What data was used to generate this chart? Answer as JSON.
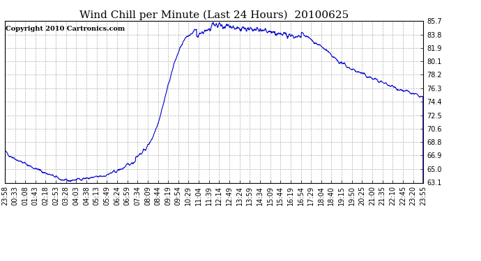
{
  "title": "Wind Chill per Minute (Last 24 Hours)  20100625",
  "copyright": "Copyright 2010 Cartronics.com",
  "line_color": "#0000CC",
  "background_color": "#ffffff",
  "grid_color": "#b0b0b0",
  "grid_style": "--",
  "ylim": [
    63.1,
    85.7
  ],
  "yticks": [
    63.1,
    65.0,
    66.9,
    68.8,
    70.6,
    72.5,
    74.4,
    76.3,
    78.2,
    80.1,
    81.9,
    83.8,
    85.7
  ],
  "xtick_labels": [
    "23:58",
    "00:33",
    "01:08",
    "01:43",
    "02:18",
    "02:53",
    "03:28",
    "04:03",
    "04:38",
    "05:13",
    "05:49",
    "06:24",
    "06:59",
    "07:34",
    "08:09",
    "08:44",
    "09:19",
    "09:54",
    "10:29",
    "11:04",
    "11:39",
    "12:14",
    "12:49",
    "13:24",
    "13:59",
    "14:34",
    "15:09",
    "15:44",
    "16:19",
    "16:54",
    "17:29",
    "18:04",
    "18:40",
    "19:15",
    "19:50",
    "20:25",
    "21:00",
    "21:35",
    "22:10",
    "22:45",
    "23:20",
    "23:55"
  ],
  "line_width": 0.8,
  "title_fontsize": 11,
  "tick_fontsize": 7,
  "copyright_fontsize": 7
}
